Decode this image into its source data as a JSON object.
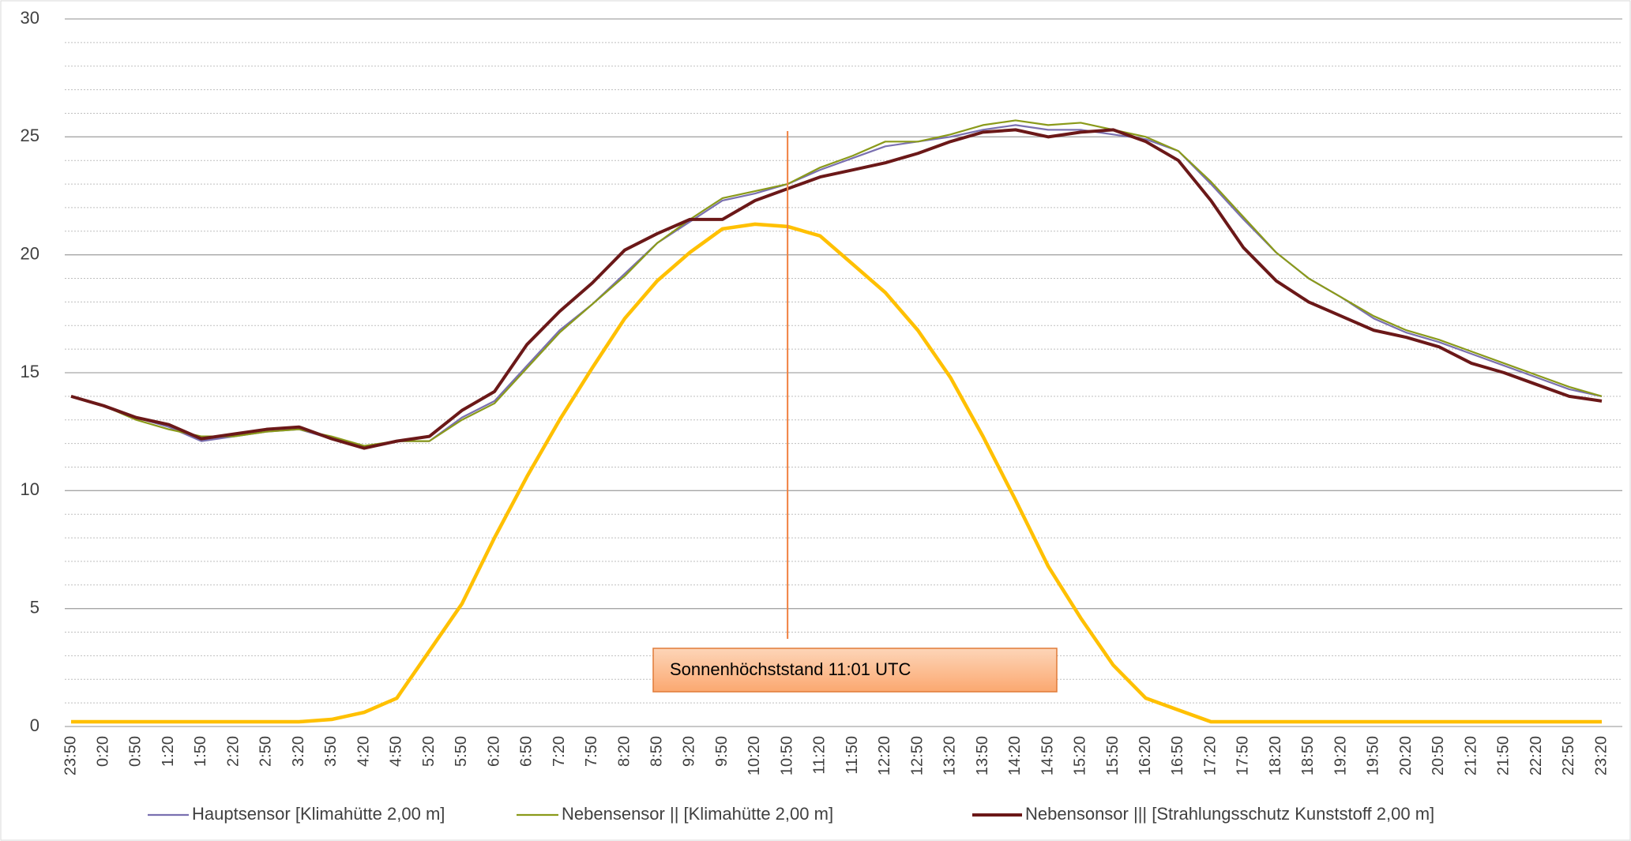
{
  "chart_data": {
    "type": "line",
    "categories": [
      "23:50",
      "0:20",
      "0:50",
      "1:20",
      "1:50",
      "2:20",
      "2:50",
      "3:20",
      "3:50",
      "4:20",
      "4:50",
      "5:20",
      "5:50",
      "6:20",
      "6:50",
      "7:20",
      "7:50",
      "8:20",
      "8:50",
      "9:20",
      "9:50",
      "10:20",
      "10:50",
      "11:20",
      "11:50",
      "12:20",
      "12:50",
      "13:20",
      "13:50",
      "14:20",
      "14:50",
      "15:20",
      "15:50",
      "16:20",
      "16:50",
      "17:20",
      "17:50",
      "18:20",
      "18:50",
      "19:20",
      "19:50",
      "20:20",
      "20:50",
      "21:20",
      "21:50",
      "22:20",
      "22:50",
      "23:20"
    ],
    "series": [
      {
        "name": "Hauptsensor [Klimahütte 2,00 m]",
        "color": "#7a70b0",
        "values": [
          14.0,
          13.6,
          13.1,
          12.7,
          12.1,
          12.3,
          12.5,
          12.6,
          12.2,
          11.8,
          12.1,
          12.1,
          13.1,
          13.8,
          15.3,
          16.8,
          17.9,
          19.2,
          20.5,
          21.4,
          22.3,
          22.6,
          23.0,
          23.6,
          24.1,
          24.6,
          24.8,
          25.0,
          25.3,
          25.5,
          25.3,
          25.3,
          25.1,
          24.9,
          24.4,
          23.0,
          21.5,
          20.1,
          19.0,
          18.2,
          17.3,
          16.7,
          16.3,
          15.8,
          15.3,
          14.8,
          14.3,
          14.0
        ]
      },
      {
        "name": "Nebensensor || [Klimahütte 2,00 m]",
        "color": "#8a9a1a",
        "values": [
          14.0,
          13.6,
          13.0,
          12.6,
          12.3,
          12.3,
          12.5,
          12.6,
          12.3,
          11.9,
          12.1,
          12.1,
          13.0,
          13.7,
          15.2,
          16.7,
          17.9,
          19.1,
          20.5,
          21.5,
          22.4,
          22.7,
          23.0,
          23.7,
          24.2,
          24.8,
          24.8,
          25.1,
          25.5,
          25.7,
          25.5,
          25.6,
          25.3,
          25.0,
          24.4,
          23.1,
          21.6,
          20.1,
          19.0,
          18.2,
          17.4,
          16.8,
          16.4,
          15.9,
          15.4,
          14.9,
          14.4,
          14.0
        ]
      },
      {
        "name": "Nebensonsor ||| [Strahlungsschutz Kunststoff 2,00 m]",
        "color": "#6b1818",
        "values": [
          14.0,
          13.6,
          13.1,
          12.8,
          12.2,
          12.4,
          12.6,
          12.7,
          12.2,
          11.8,
          12.1,
          12.3,
          13.4,
          14.2,
          16.2,
          17.6,
          18.8,
          20.2,
          20.9,
          21.5,
          21.5,
          22.3,
          22.8,
          23.3,
          23.6,
          23.9,
          24.3,
          24.8,
          25.2,
          25.3,
          25.0,
          25.2,
          25.3,
          24.8,
          24.0,
          22.3,
          20.3,
          18.9,
          18.0,
          17.4,
          16.8,
          16.5,
          16.1,
          15.4,
          15.0,
          14.5,
          14.0,
          13.8
        ]
      },
      {
        "color": "#ffc000",
        "values": [
          0.2,
          0.2,
          0.2,
          0.2,
          0.2,
          0.2,
          0.2,
          0.2,
          0.3,
          0.6,
          1.2,
          3.2,
          5.2,
          8.0,
          10.6,
          13.0,
          15.2,
          17.3,
          18.9,
          20.1,
          21.1,
          21.3,
          21.2,
          20.8,
          19.6,
          18.4,
          16.8,
          14.8,
          12.3,
          9.6,
          6.8,
          4.6,
          2.6,
          1.2,
          0.7,
          0.2,
          0.2,
          0.2,
          0.2,
          0.2,
          0.2,
          0.2,
          0.2,
          0.2,
          0.2,
          0.2,
          0.2,
          0.2
        ]
      }
    ],
    "ylim": [
      0,
      30
    ],
    "yticks": [
      0,
      5,
      10,
      15,
      20,
      25,
      30
    ],
    "grid": true,
    "annotation": "Sonnenhöchststand 11:01 UTC"
  }
}
